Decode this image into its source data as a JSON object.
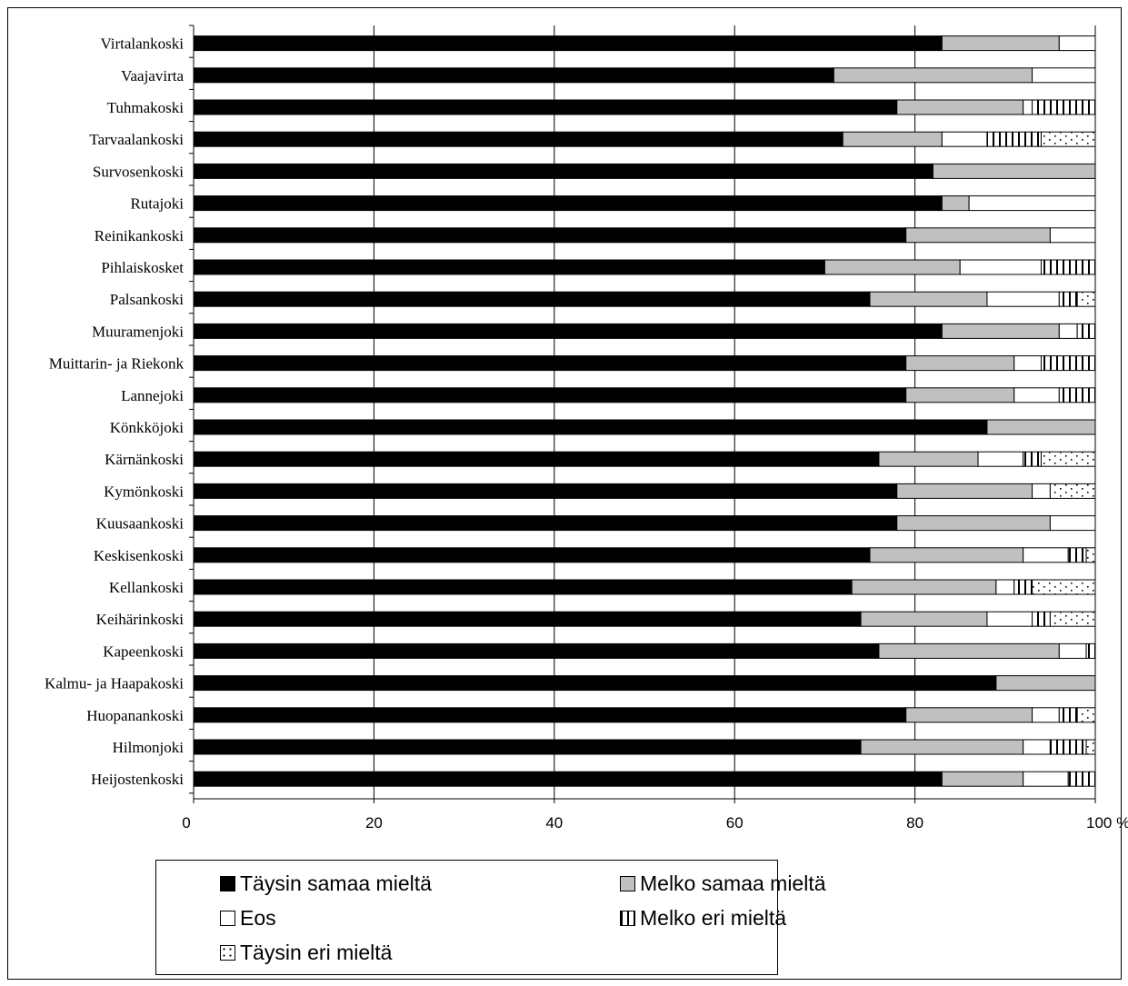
{
  "chart_data": {
    "type": "bar",
    "orientation": "horizontal",
    "stacked": true,
    "categories": [
      "Virtalankoski",
      "Vaajavirta",
      "Tuhmakoski",
      "Tarvaalankoski",
      "Survosenkoski",
      "Rutajoki",
      "Reinikankoski",
      "Pihlaiskosket",
      "Palsankoski",
      "Muuramenjoki",
      "Muittarin- ja Riekonk",
      "Lannejoki",
      "Könkköjoki",
      "Kärnänkoski",
      "Kymönkoski",
      "Kuusaankoski",
      "Keskisenkoski",
      "Kellankoski",
      "Keihärinkoski",
      "Kapeenkoski",
      "Kalmu- ja Haapakoski",
      "Huopanankoski",
      "Hilmonjoki",
      "Heijostenkoski"
    ],
    "series": [
      {
        "name": "Täysin samaa mieltä",
        "values": [
          83,
          71,
          78,
          72,
          82,
          83,
          79,
          70,
          75,
          83,
          79,
          79,
          88,
          76,
          78,
          78,
          75,
          73,
          74,
          76,
          89,
          79,
          74,
          83
        ]
      },
      {
        "name": "Melko samaa mieltä",
        "values": [
          13,
          22,
          14,
          11,
          18,
          3,
          16,
          15,
          13,
          13,
          12,
          12,
          12,
          11,
          15,
          17,
          17,
          16,
          14,
          20,
          11,
          14,
          18,
          9
        ]
      },
      {
        "name": "Eos",
        "values": [
          4,
          7,
          1,
          5,
          0,
          14,
          5,
          9,
          8,
          2,
          3,
          5,
          0,
          5,
          2,
          5,
          5,
          2,
          5,
          3,
          0,
          3,
          3,
          5
        ]
      },
      {
        "name": "Melko eri mieltä",
        "values": [
          0,
          0,
          7,
          6,
          0,
          0,
          0,
          6,
          2,
          2,
          6,
          4,
          0,
          2,
          0,
          0,
          2,
          2,
          2,
          1,
          0,
          2,
          4,
          3
        ]
      },
      {
        "name": "Täysin eri mieltä",
        "values": [
          0,
          0,
          0,
          6,
          0,
          0,
          0,
          0,
          2,
          0,
          0,
          0,
          0,
          6,
          5,
          0,
          1,
          7,
          5,
          0,
          0,
          2,
          1,
          0
        ]
      }
    ],
    "xlim": [
      0,
      100
    ],
    "xticks": [
      "0",
      "20",
      "40",
      "60",
      "80",
      "100 %"
    ],
    "title": "",
    "xlabel": "",
    "ylabel": "",
    "grid": true,
    "legend_position": "bottom",
    "colors": {
      "Täysin samaa mieltä": "#000000",
      "Melko samaa mieltä": "#c0c0c0",
      "Eos": "#ffffff",
      "Melko eri mieltä": "pattern-vertical-stripes",
      "Täysin eri mieltä": "pattern-dots"
    }
  },
  "legend": {
    "items": [
      {
        "label": "Täysin samaa mieltä",
        "swatch": "solid-black"
      },
      {
        "label": "Melko samaa mieltä",
        "swatch": "solid-gray"
      },
      {
        "label": "Eos",
        "swatch": "white"
      },
      {
        "label": "Melko eri mieltä",
        "swatch": "vertical-stripes"
      },
      {
        "label": "Täysin eri mieltä",
        "swatch": "dots"
      }
    ]
  }
}
